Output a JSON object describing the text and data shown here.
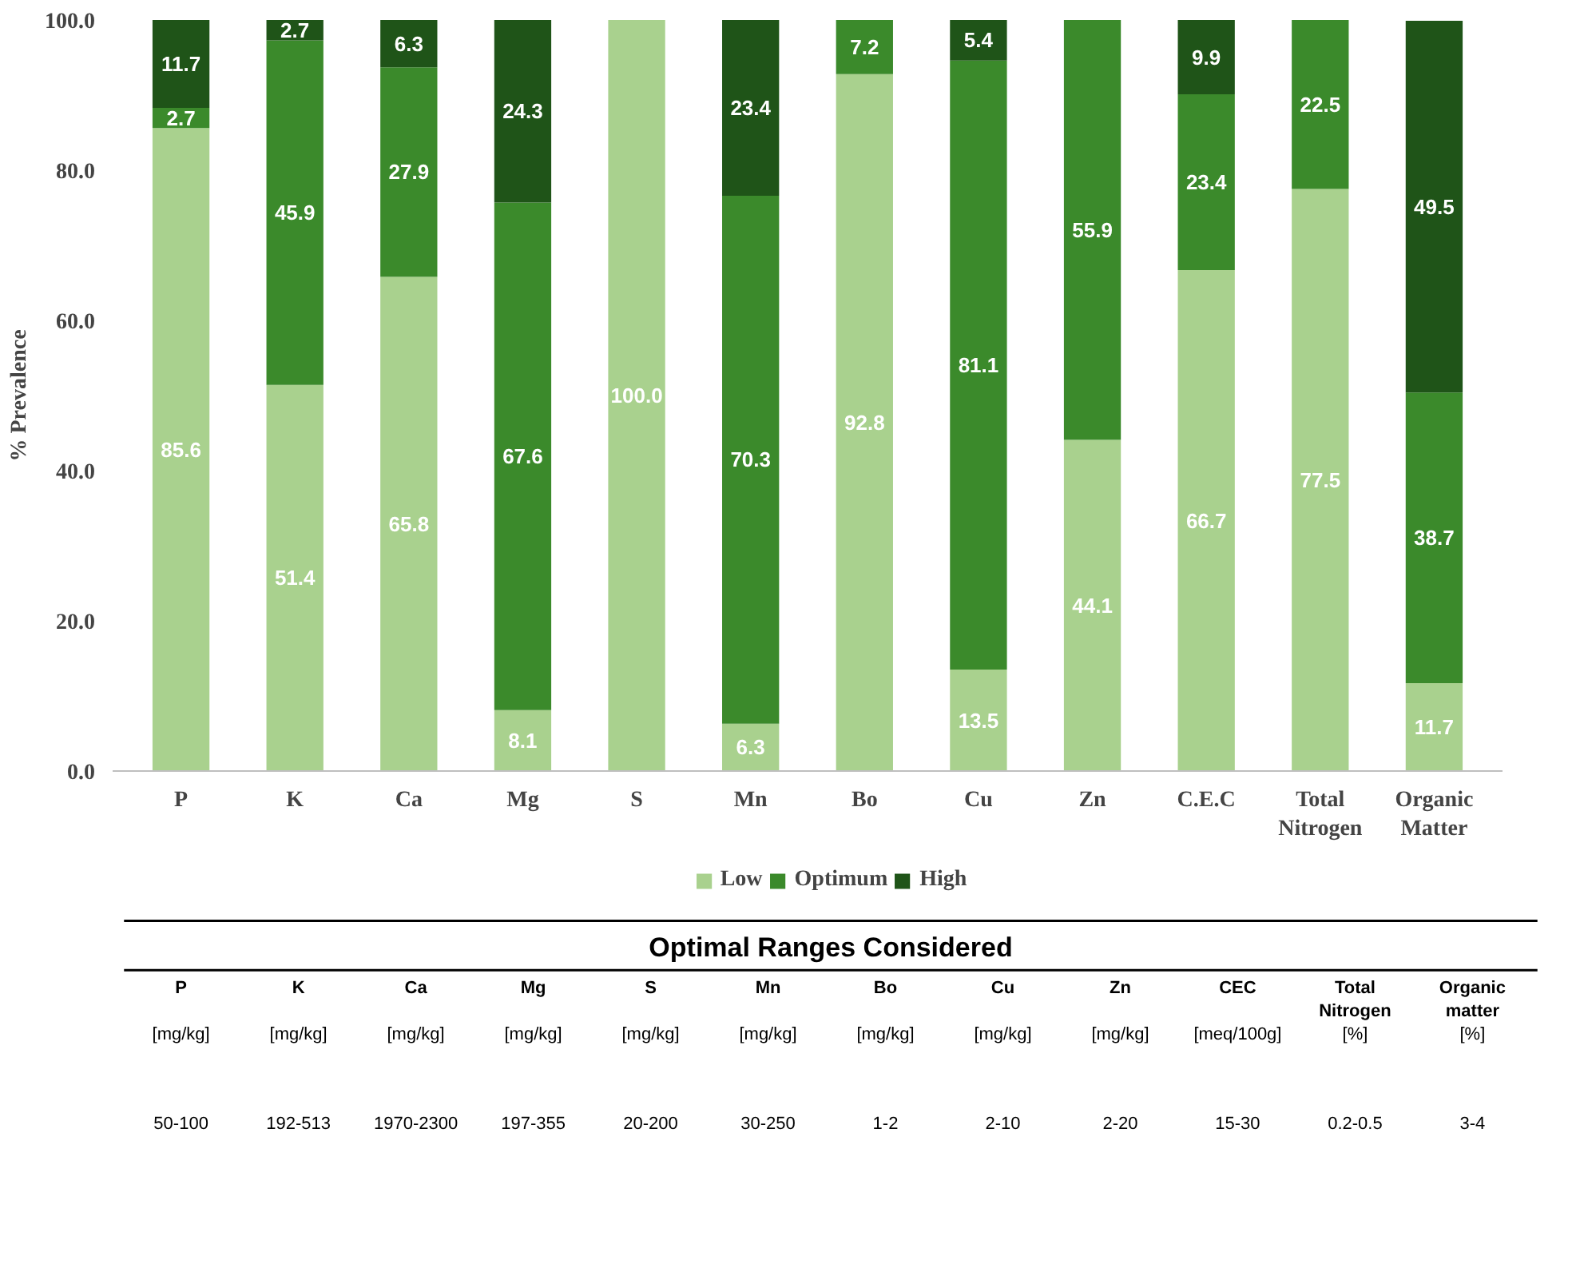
{
  "chart_data": {
    "type": "bar",
    "stacked": true,
    "ylabel": "% Prevalence",
    "categories": [
      "P",
      "K",
      "Ca",
      "Mg",
      "S",
      "Mn",
      "Bo",
      "Cu",
      "Zn",
      "C.E.C",
      "Total Nitrogen",
      "Organic Matter"
    ],
    "series": [
      {
        "name": "Low",
        "color": "#a9d18e",
        "values": [
          85.6,
          51.4,
          65.8,
          8.1,
          100.0,
          6.3,
          92.8,
          13.5,
          44.1,
          66.7,
          77.5,
          11.7
        ],
        "value_labels": [
          "85.6",
          "51.4",
          "65.8",
          "8.1",
          "100.0",
          "6.3",
          "92.8",
          "13.5",
          "44.1",
          "66.7",
          "77.5",
          "11.7"
        ]
      },
      {
        "name": "Optimum",
        "color": "#3b8a2b",
        "values": [
          2.7,
          45.9,
          27.9,
          67.6,
          0,
          70.3,
          7.2,
          81.1,
          55.9,
          23.4,
          22.5,
          38.7
        ],
        "value_labels": [
          "2.7",
          "45.9",
          "27.9",
          "67.6",
          null,
          "70.3",
          "7.2",
          "81.1",
          "55.9",
          "23.4",
          "22.5",
          "38.7"
        ]
      },
      {
        "name": "High",
        "color": "#1f5418",
        "values": [
          11.7,
          2.7,
          6.3,
          24.3,
          0,
          23.4,
          0,
          5.4,
          0,
          9.9,
          0,
          49.5
        ],
        "value_labels": [
          "11.7",
          "2.7",
          "6.3",
          "24.3",
          null,
          "23.4",
          null,
          "5.4",
          null,
          "9.9",
          null,
          "49.5"
        ]
      }
    ],
    "ylim": [
      0,
      100
    ],
    "yticks": [
      {
        "value": 0,
        "label": "0.0"
      },
      {
        "value": 20,
        "label": "20.0"
      },
      {
        "value": 40,
        "label": "40.0"
      },
      {
        "value": 60,
        "label": "60.0"
      },
      {
        "value": 80,
        "label": "80.0"
      },
      {
        "value": 100,
        "label": "100.0"
      }
    ],
    "grid": false,
    "legend": "bottom",
    "annotations": [
      "Optimal Ranges Considered",
      "P",
      "[mg/kg]",
      "50-100",
      "K",
      "[mg/kg]",
      "192-513",
      "Ca",
      "[mg/kg]",
      "1970-2300",
      "Mg",
      "[mg/kg]",
      "197-355",
      "S",
      "[mg/kg]",
      "20-200",
      "Mn",
      "[mg/kg]",
      "30-250",
      "Bo",
      "[mg/kg]",
      "1-2",
      "Cu",
      "[mg/kg]",
      "2-10",
      "Zn",
      "[mg/kg]",
      "2-20",
      "CEC",
      "[meq/100g]",
      "15-30",
      "Total Nitrogen",
      "[%]",
      "0.2-0.5",
      "Organic matter",
      "[%]",
      "3-4"
    ]
  }
}
